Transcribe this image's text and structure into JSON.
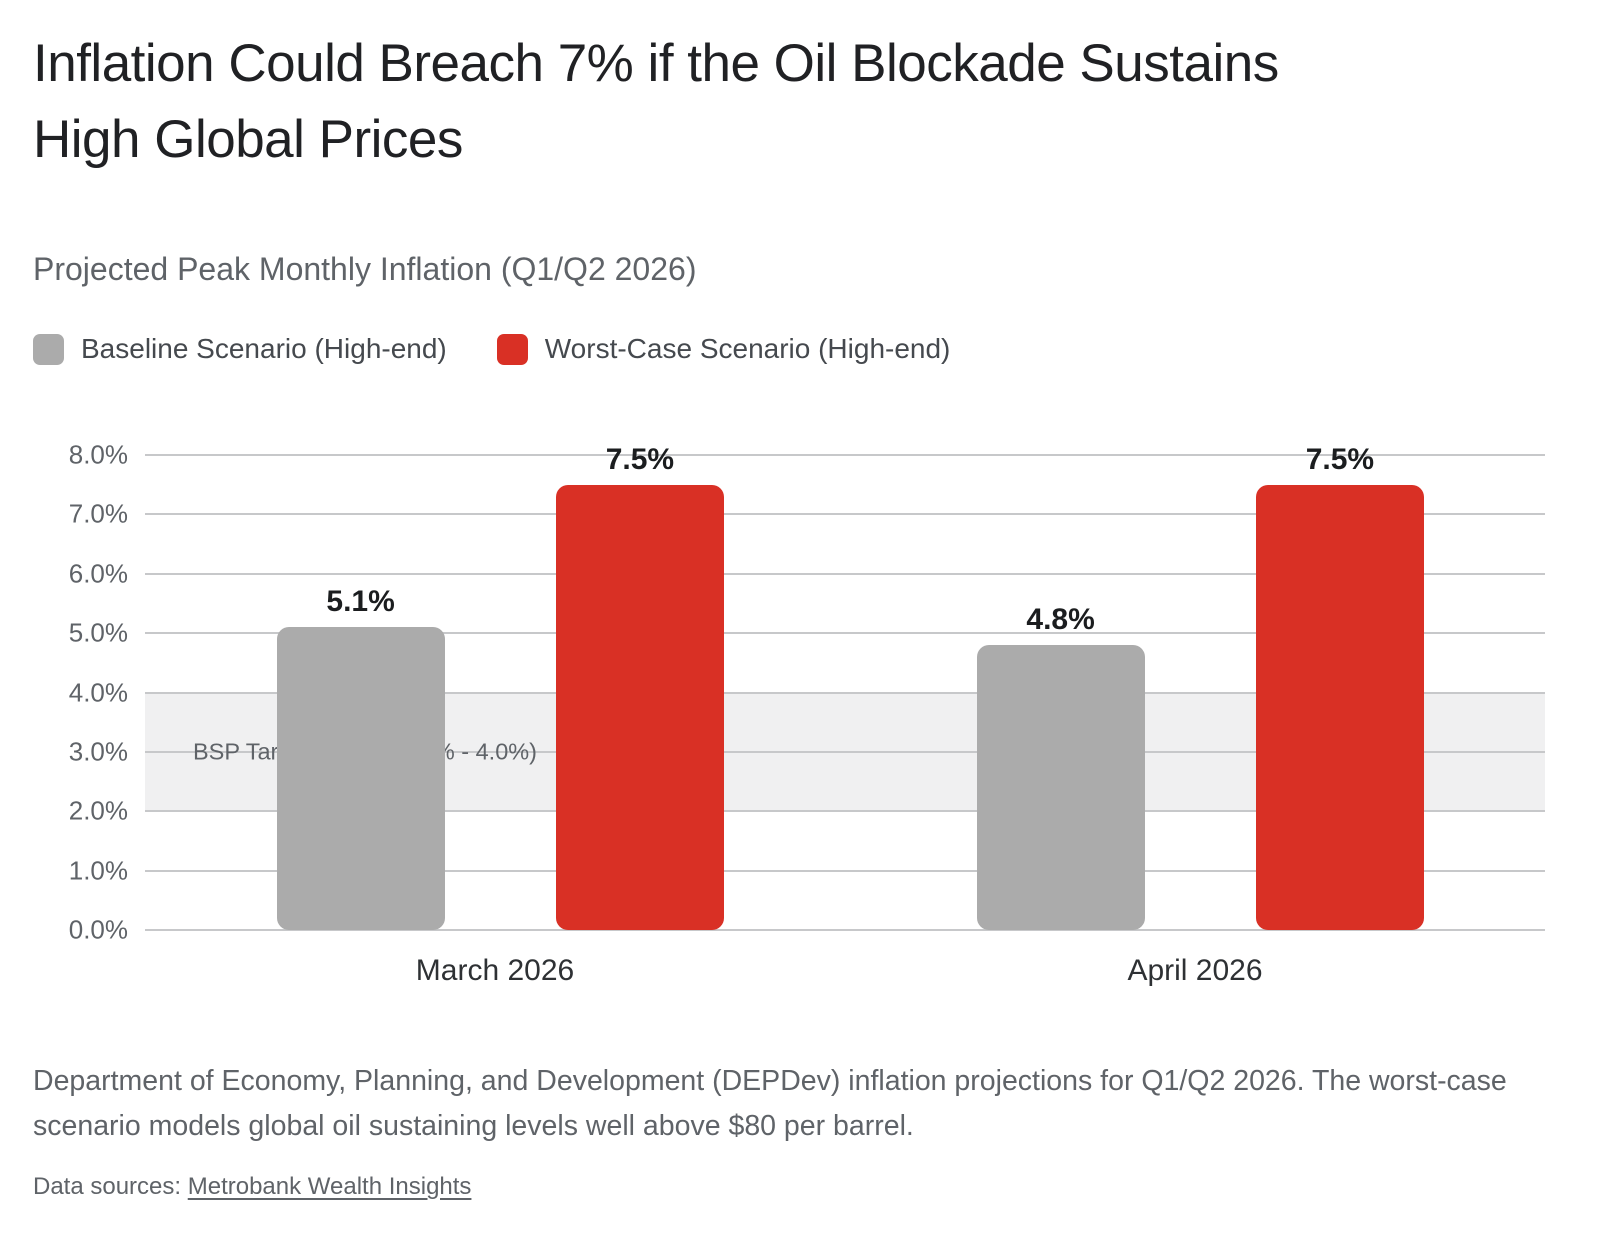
{
  "title_lines": [
    "Inflation Could Breach 7% if the Oil Blockade Sustains",
    "High Global Prices"
  ],
  "subtitle": "Projected Peak Monthly Inflation (Q1/Q2 2026)",
  "legend": [
    {
      "label": "Baseline Scenario (High-end)",
      "color": "#ababab"
    },
    {
      "label": "Worst-Case Scenario (High-end)",
      "color": "#d93025"
    }
  ],
  "chart_data": {
    "type": "bar",
    "categories": [
      "March 2026",
      "April 2026"
    ],
    "series": [
      {
        "name": "Baseline Scenario (High-end)",
        "color": "#ababab",
        "values": [
          5.1,
          4.8
        ],
        "labels": [
          "5.1%",
          "4.8%"
        ]
      },
      {
        "name": "Worst-Case Scenario (High-end)",
        "color": "#d93025",
        "values": [
          7.5,
          7.5
        ],
        "labels": [
          "7.5%",
          "7.5%"
        ]
      }
    ],
    "ylim": [
      0,
      8
    ],
    "yticks": [
      "0.0%",
      "1.0%",
      "2.0%",
      "3.0%",
      "4.0%",
      "5.0%",
      "6.0%",
      "7.0%",
      "8.0%"
    ],
    "band": {
      "from": 2.0,
      "to": 4.0,
      "label": "BSP Target Range (2.0% - 4.0%)",
      "fill": "#f0f0f1"
    },
    "grid": true,
    "legend_position": "top"
  },
  "colors": {
    "title": "#202124",
    "muted_text": "#5f6368",
    "gridline": "#c7c8ca",
    "band_fill": "#f0f0f1",
    "baseline_bar": "#ababab",
    "worst_case_bar": "#d93025"
  },
  "footer": {
    "note": "Department of Economy, Planning, and Development (DEPDev) inflation projections for Q1/Q2 2026. The worst-case scenario models global oil sustaining levels well above $80 per barrel.",
    "sources_prefix": "Data sources: ",
    "source_link": "Metrobank Wealth Insights"
  }
}
